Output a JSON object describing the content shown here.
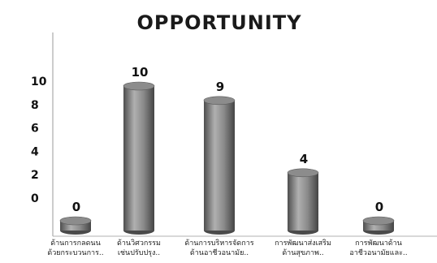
{
  "chart_data": {
    "type": "bar",
    "title": "OPPORTUNITY",
    "xlabel": "",
    "ylabel": "",
    "categories": [
      [
        "ด้านการกลดนน",
        "ด้วยกระบวนการ.."
      ],
      [
        "ด้านวิศวกรรม",
        "เช่นปรับปรุง.."
      ],
      [
        "ด้านการบริหารจัดการ",
        "ด้านอาชีวอนามัย.."
      ],
      [
        "การพัฒนาส่งเสริม",
        "ด้านสุขภาพ.."
      ],
      [
        "การพัฒนาด้าน",
        "อาชีวอนามัยและ.."
      ]
    ],
    "values": [
      0,
      10,
      9,
      4,
      0
    ],
    "data_labels": [
      "0",
      "10",
      "9",
      "4",
      "0"
    ],
    "yticks": [
      "0",
      "2",
      "4",
      "6",
      "8",
      "10"
    ],
    "ylim": [
      0,
      10
    ],
    "grid": false,
    "legend": "none",
    "colors": {
      "bar": "#777777",
      "bar_light": "#b5b5b5",
      "bar_dark": "#4a4a4a",
      "axis": "#999999"
    }
  }
}
